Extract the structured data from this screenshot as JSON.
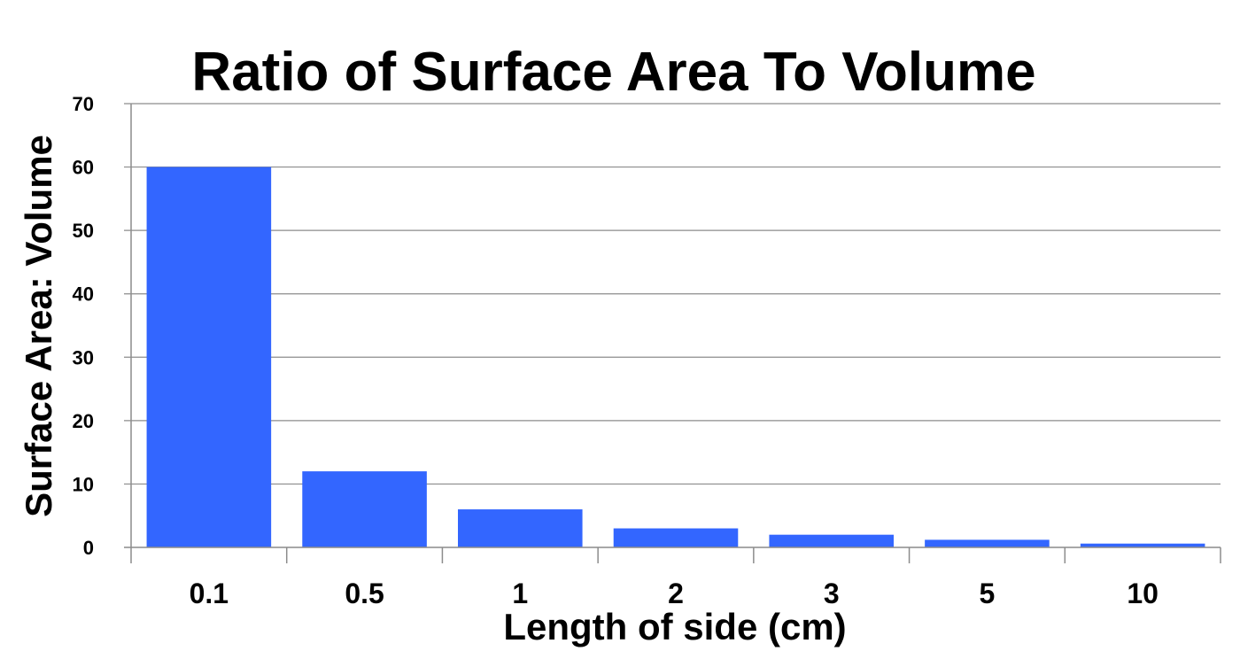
{
  "chart_data": {
    "type": "bar",
    "title": "Ratio of Surface Area To Volume",
    "xlabel": "Length of side (cm)",
    "ylabel": "Surface Area: Volume",
    "categories": [
      "0.1",
      "0.5",
      "1",
      "2",
      "3",
      "5",
      "10"
    ],
    "values": [
      60,
      12,
      6,
      3,
      2,
      1.2,
      0.6
    ],
    "ylim": [
      0,
      70
    ],
    "yticks": [
      0,
      10,
      20,
      30,
      40,
      50,
      60,
      70
    ],
    "grid": true,
    "legend": "none",
    "bar_color": "#3366ff"
  }
}
